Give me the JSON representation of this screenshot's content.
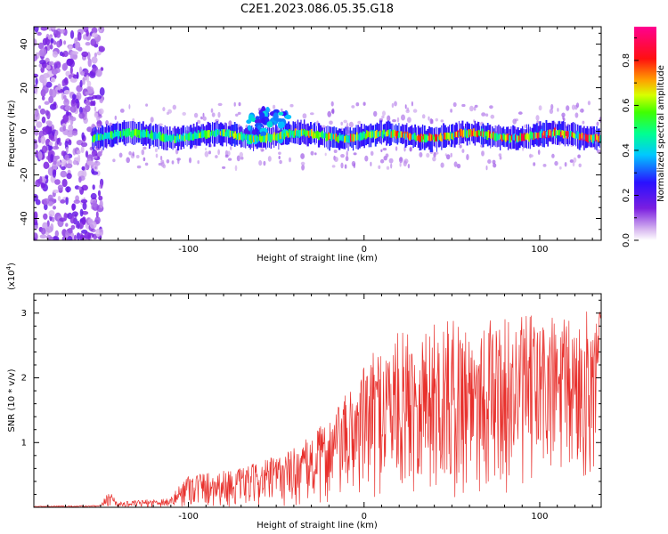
{
  "page": {
    "title": "C2E1.2023.086.05.35.G18"
  },
  "chart_data": [
    {
      "type": "heatmap",
      "xlabel": "Height of straight line (km)",
      "ylabel": "Frequency (Hz)",
      "xlim": [
        -188,
        135
      ],
      "ylim": [
        -50,
        48
      ],
      "x_ticks": [
        -100,
        0,
        100
      ],
      "y_ticks": [
        -40,
        -20,
        0,
        20,
        40
      ],
      "colorbar": {
        "label": "Normalized spectral amplitude",
        "range": [
          0.0,
          0.95
        ],
        "ticks": [
          "0.0",
          "0.2",
          "0.4",
          "0.6",
          "0.8"
        ],
        "tick_values": [
          0.0,
          0.2,
          0.4,
          0.6,
          0.8
        ],
        "colormap": "rainbow (purple-blue-cyan-green-yellow-orange-red-magenta)"
      },
      "features": [
        {
          "description": "broadband noise",
          "x_range": [
            -188,
            -155
          ],
          "y_range": [
            -50,
            48
          ],
          "amplitude": 0.1
        },
        {
          "description": "signal band",
          "x_range": [
            -155,
            135
          ],
          "center_freq_hz": -2,
          "width_hz": 6,
          "amplitude_range": [
            0.2,
            0.9
          ]
        },
        {
          "description": "frequency excursion",
          "x_center": -55,
          "freq_range_hz": [
            -5,
            10
          ],
          "amplitude": 0.4
        }
      ]
    },
    {
      "type": "line",
      "xlabel": "Height of straight line (km)",
      "ylabel": "SNR (10 * v/v)",
      "y_multiplier": "(x10",
      "y_multiplier_exp": "4",
      "y_multiplier_close": ")",
      "xlim": [
        -188,
        135
      ],
      "ylim": [
        0,
        3.3
      ],
      "x_ticks": [
        -100,
        0,
        100
      ],
      "y_ticks": [
        1,
        2,
        3
      ],
      "color": "#e8302c",
      "envelope": {
        "x": [
          -188,
          -150,
          -145,
          -140,
          -110,
          -100,
          -90,
          -70,
          -60,
          -45,
          -30,
          -20,
          -10,
          0,
          10,
          20,
          40,
          60,
          80,
          100,
          120,
          135
        ],
        "max": [
          0.02,
          0.03,
          0.28,
          0.08,
          0.15,
          0.55,
          0.55,
          0.6,
          0.7,
          0.85,
          1.1,
          1.4,
          1.75,
          2.2,
          2.55,
          2.7,
          2.85,
          2.95,
          2.9,
          3.0,
          2.9,
          3.2
        ],
        "min": [
          0.0,
          0.0,
          0.0,
          0.0,
          0.0,
          0.0,
          0.0,
          0.0,
          0.0,
          0.0,
          0.0,
          0.02,
          0.05,
          0.1,
          0.15,
          0.2,
          0.15,
          0.1,
          0.2,
          0.2,
          0.3,
          0.4
        ]
      }
    }
  ]
}
